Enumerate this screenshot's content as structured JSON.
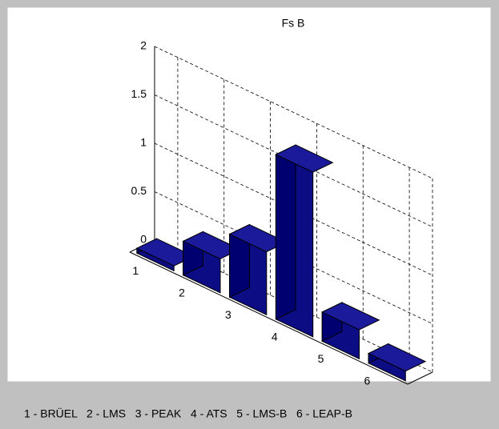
{
  "chart_data": {
    "type": "bar3d",
    "title": "Fs  B",
    "categories": [
      "1",
      "2",
      "3",
      "4",
      "5",
      "6"
    ],
    "values": [
      0.05,
      0.35,
      0.65,
      1.7,
      0.3,
      0.1
    ],
    "color": "#1a1a9a",
    "ylim": [
      0,
      2
    ],
    "yticks": [
      0,
      0.5,
      1,
      1.5,
      2
    ],
    "grid": true,
    "legend_text": "1 - BRÜEL   2 - LMS   3 - PEAK   4 - ATS   5 - LMS-B   6 - LEAP-B"
  }
}
